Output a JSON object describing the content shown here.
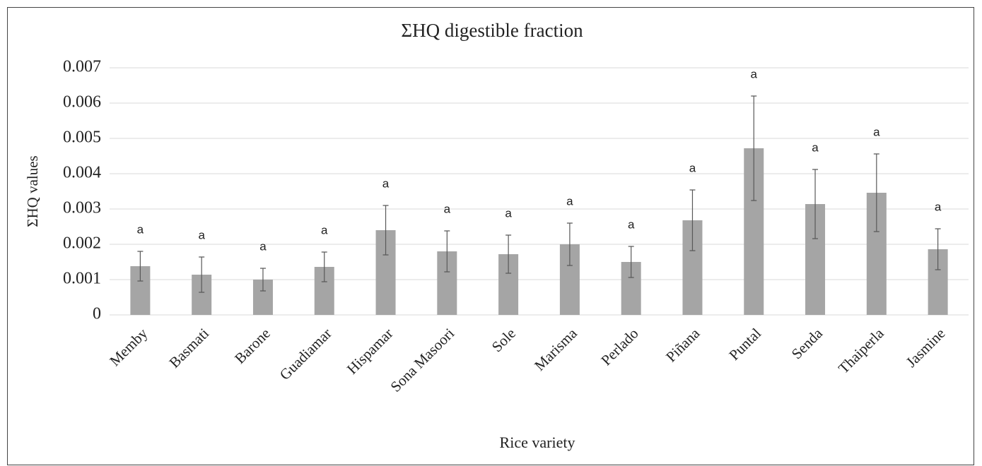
{
  "chart_data": {
    "type": "bar",
    "title": "ΣHQ  digestible fraction",
    "x_label": "Rice variety",
    "y_label": "ΣHQ values",
    "categories": [
      "Memby",
      "Basmati",
      "Barone",
      "Guadiamar",
      "Hispamar",
      "Sona Masoori",
      "Sole",
      "Marisma",
      "Perlado",
      "Piñana",
      "Puntal",
      "Senda",
      "Thaiperla",
      "Jasmine"
    ],
    "values": [
      0.00138,
      0.00114,
      0.001,
      0.00136,
      0.0024,
      0.0018,
      0.00172,
      0.002,
      0.0015,
      0.00268,
      0.00472,
      0.00314,
      0.00346,
      0.00186
    ],
    "errors": [
      0.00042,
      0.0005,
      0.00032,
      0.00042,
      0.0007,
      0.00058,
      0.00054,
      0.0006,
      0.00044,
      0.00086,
      0.00148,
      0.00098,
      0.0011,
      0.00058
    ],
    "annotations": [
      "a",
      "a",
      "a",
      "a",
      "a",
      "a",
      "a",
      "a",
      "a",
      "a",
      "a",
      "a",
      "a",
      "a"
    ],
    "color": "#a5a5a5",
    "error_color": "#595959",
    "ylim": [
      0,
      0.007
    ],
    "yticks": [
      0,
      0.001,
      0.002,
      0.003,
      0.004,
      0.005,
      0.006,
      0.007
    ],
    "grid": true
  }
}
